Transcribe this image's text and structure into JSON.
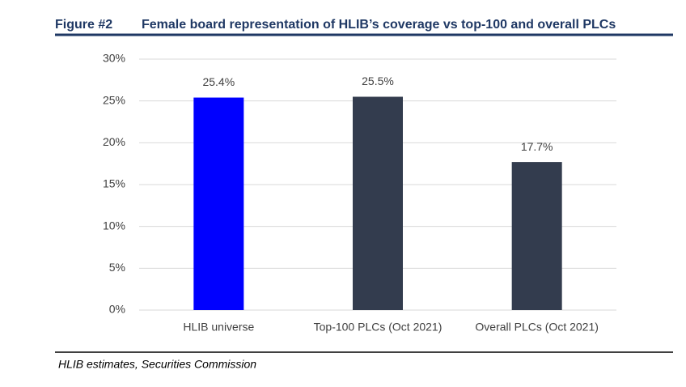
{
  "chart_data": {
    "type": "bar",
    "figure_label": "Figure #2",
    "title": "Female board representation of HLIB’s coverage vs top-100 and overall PLCs",
    "categories": [
      "HLIB universe",
      "Top-100 PLCs (Oct 2021)",
      "Overall PLCs (Oct 2021)"
    ],
    "values": [
      25.4,
      25.5,
      17.7
    ],
    "value_labels": [
      "25.4%",
      "25.5%",
      "17.7%"
    ],
    "colors": [
      "#0000ff",
      "#333c4e",
      "#333c4e"
    ],
    "ylim": [
      0,
      30
    ],
    "yticks": [
      {
        "value": 0,
        "label": "0%"
      },
      {
        "value": 5,
        "label": "5%"
      },
      {
        "value": 10,
        "label": "10%"
      },
      {
        "value": 15,
        "label": "15%"
      },
      {
        "value": 20,
        "label": "20%"
      },
      {
        "value": 25,
        "label": "25%"
      },
      {
        "value": 30,
        "label": "30%"
      }
    ],
    "grid": true,
    "source": "HLIB estimates, Securities Commission"
  }
}
